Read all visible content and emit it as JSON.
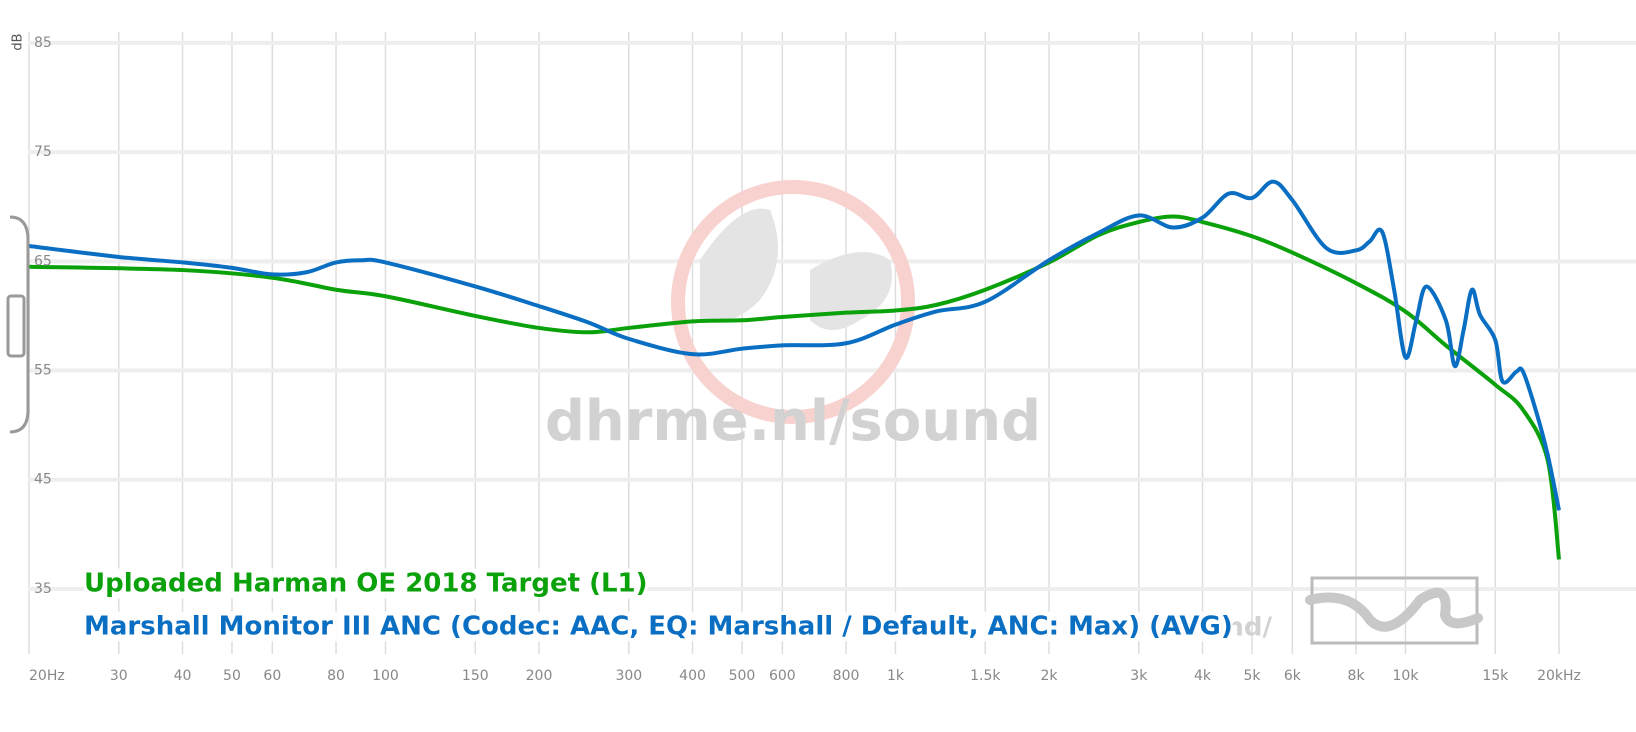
{
  "chart_data": {
    "type": "line",
    "y_label": "dB",
    "watermark": "dhrme.nl/sound",
    "watermark_small": "dhrme.nl/sound/",
    "log_x": true,
    "grid": true,
    "xlim": [
      20,
      20000
    ],
    "ylim": [
      29.5,
      86
    ],
    "xticks": [
      {
        "value": 20,
        "label": "20Hz"
      },
      30,
      40,
      50,
      60,
      80,
      100,
      150,
      200,
      300,
      400,
      500,
      600,
      800,
      {
        "value": 1000,
        "label": "1k"
      },
      {
        "value": 1500,
        "label": "1.5k"
      },
      {
        "value": 2000,
        "label": "2k"
      },
      {
        "value": 3000,
        "label": "3k"
      },
      {
        "value": 4000,
        "label": "4k"
      },
      {
        "value": 5000,
        "label": "5k"
      },
      {
        "value": 6000,
        "label": "6k"
      },
      {
        "value": 8000,
        "label": "8k"
      },
      {
        "value": 10000,
        "label": "10k"
      },
      {
        "value": 15000,
        "label": "15k"
      },
      {
        "value": 20000,
        "label": "20kHz"
      }
    ],
    "yticks": [
      35,
      45,
      55,
      65,
      75,
      85
    ],
    "series": [
      {
        "name": "Uploaded Harman OE 2018 Target (L1)",
        "color": "#0aa10a",
        "x": [
          20,
          40,
          60,
          80,
          100,
          150,
          200,
          250,
          300,
          400,
          500,
          600,
          800,
          1000,
          1200,
          1500,
          2000,
          2500,
          3000,
          3500,
          4000,
          5000,
          6000,
          8000,
          10000,
          12000,
          15000,
          17000,
          19000,
          20000
        ],
        "values": [
          64.5,
          64.2,
          63.5,
          62.4,
          61.8,
          60.0,
          58.9,
          58.5,
          58.9,
          59.5,
          59.6,
          59.9,
          60.3,
          60.5,
          61.0,
          62.4,
          64.9,
          67.4,
          68.6,
          69.1,
          68.6,
          67.3,
          65.8,
          63.0,
          60.4,
          57.3,
          53.7,
          51.4,
          46.8,
          37.7
        ]
      },
      {
        "name": "Marshall Monitor III ANC (Codec: AAC, EQ: Marshall / Default, ANC: Max) (AVG)",
        "color": "#0a6fc2",
        "x": [
          20,
          30,
          40,
          50,
          60,
          70,
          80,
          90,
          100,
          150,
          200,
          250,
          300,
          400,
          500,
          600,
          800,
          1000,
          1200,
          1500,
          2000,
          2500,
          3000,
          3500,
          4000,
          4500,
          5000,
          5500,
          6000,
          7000,
          8000,
          8500,
          9000,
          9500,
          10000,
          10500,
          11000,
          12000,
          12500,
          13000,
          13500,
          14000,
          15000,
          15500,
          16500,
          17000,
          18000,
          19000,
          20000
        ],
        "values": [
          66.4,
          65.4,
          64.9,
          64.4,
          63.8,
          64.0,
          64.9,
          65.1,
          64.9,
          62.7,
          60.9,
          59.4,
          57.9,
          56.5,
          57.0,
          57.3,
          57.5,
          59.2,
          60.4,
          61.3,
          65.1,
          67.6,
          69.2,
          68.1,
          69.0,
          71.2,
          70.8,
          72.3,
          70.6,
          66.2,
          66.0,
          66.8,
          67.7,
          62.4,
          56.2,
          59.6,
          62.7,
          59.6,
          55.4,
          58.7,
          62.4,
          60.1,
          57.8,
          54.0,
          54.9,
          54.9,
          51.4,
          47.3,
          42.2
        ]
      }
    ]
  }
}
